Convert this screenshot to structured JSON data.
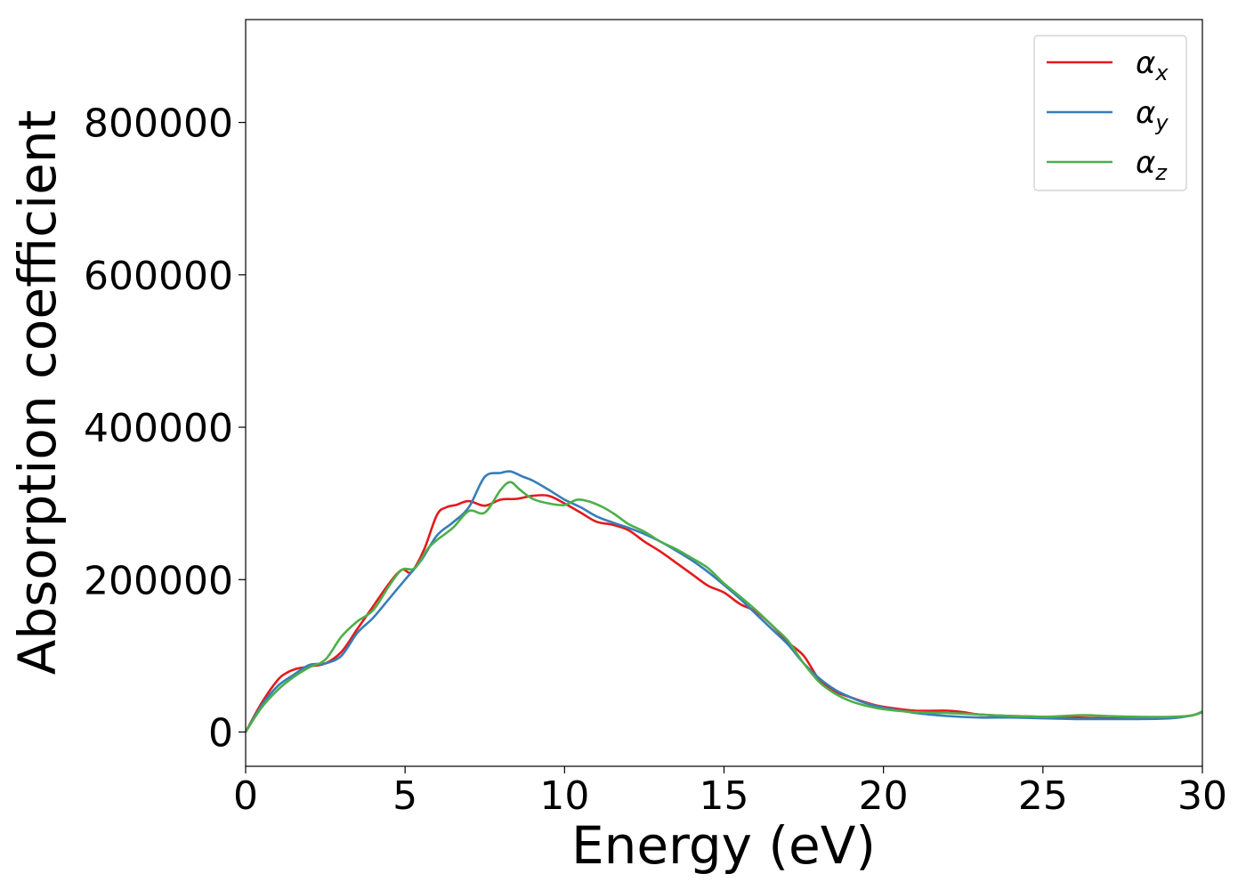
{
  "chart_data": {
    "type": "line",
    "xlabel": "Energy (eV)",
    "ylabel": "Absorption coefficient",
    "xlim": [
      0,
      30
    ],
    "ylim": [
      -45000,
      935000
    ],
    "xticks": [
      0,
      5,
      10,
      15,
      20,
      25,
      30
    ],
    "xtick_labels": [
      "0",
      "5",
      "10",
      "15",
      "20",
      "25",
      "30"
    ],
    "yticks": [
      0,
      200000,
      400000,
      600000,
      800000
    ],
    "ytick_labels": [
      "0",
      "200000",
      "400000",
      "600000",
      "800000"
    ],
    "grid": false,
    "legend_position": "top-right",
    "series": [
      {
        "name": "α",
        "subscript": "x",
        "color": "#e41a1c",
        "x": [
          0,
          0.5,
          1.0,
          1.3,
          1.6,
          2.0,
          2.5,
          3.0,
          3.5,
          4.0,
          4.5,
          4.9,
          5.2,
          5.6,
          6.0,
          6.3,
          6.6,
          7.0,
          7.5,
          8.0,
          8.5,
          9.0,
          9.5,
          10.0,
          10.5,
          11.0,
          11.5,
          12.0,
          12.5,
          13.0,
          13.5,
          14.0,
          14.5,
          15.0,
          15.5,
          16.0,
          16.5,
          17.0,
          17.5,
          18.0,
          18.5,
          19.0,
          19.5,
          20.0,
          21.0,
          22.0,
          22.5,
          23.0,
          24.0,
          25.0,
          26.0,
          27.0,
          28.0,
          29.0,
          29.7,
          30.0
        ],
        "values": [
          0,
          38000,
          68000,
          78000,
          83000,
          86000,
          90000,
          105000,
          135000,
          165000,
          195000,
          213000,
          210000,
          240000,
          285000,
          295000,
          298000,
          303000,
          297000,
          305000,
          306000,
          310000,
          310000,
          300000,
          288000,
          276000,
          272000,
          265000,
          250000,
          237000,
          222000,
          207000,
          192000,
          183000,
          168000,
          158000,
          140000,
          118000,
          100000,
          68000,
          53000,
          45000,
          38000,
          33000,
          28000,
          28000,
          26000,
          23000,
          21000,
          20000,
          19000,
          18000,
          18000,
          19000,
          22000,
          27000
        ]
      },
      {
        "name": "α",
        "subscript": "y",
        "color": "#377eb8",
        "x": [
          0,
          0.5,
          1.0,
          1.5,
          2.0,
          2.5,
          3.0,
          3.5,
          4.0,
          4.5,
          5.0,
          5.5,
          6.0,
          6.5,
          7.0,
          7.5,
          8.0,
          8.3,
          8.7,
          9.0,
          9.5,
          10.0,
          10.5,
          11.0,
          11.5,
          12.0,
          12.5,
          13.0,
          13.5,
          14.0,
          14.5,
          15.0,
          15.5,
          16.0,
          16.5,
          17.0,
          17.5,
          18.0,
          18.5,
          19.0,
          19.5,
          20.0,
          21.0,
          22.0,
          23.0,
          24.0,
          25.0,
          26.0,
          27.0,
          28.0,
          29.0,
          29.7,
          30.0
        ],
        "values": [
          0,
          35000,
          60000,
          75000,
          88000,
          90000,
          100000,
          130000,
          150000,
          175000,
          200000,
          225000,
          258000,
          275000,
          295000,
          335000,
          340000,
          342000,
          335000,
          330000,
          318000,
          305000,
          295000,
          283000,
          275000,
          268000,
          260000,
          250000,
          238000,
          225000,
          210000,
          193000,
          175000,
          155000,
          135000,
          115000,
          90000,
          70000,
          55000,
          45000,
          37000,
          32000,
          25000,
          21000,
          19000,
          19000,
          18000,
          17000,
          17000,
          17000,
          18000,
          22000,
          26000
        ]
      },
      {
        "name": "α",
        "subscript": "z",
        "color": "#4daf4a",
        "x": [
          0,
          0.5,
          1.0,
          1.5,
          2.0,
          2.5,
          3.0,
          3.5,
          4.0,
          4.5,
          4.9,
          5.3,
          5.7,
          6.0,
          6.5,
          7.0,
          7.5,
          8.0,
          8.3,
          8.6,
          9.0,
          9.5,
          10.0,
          10.4,
          10.8,
          11.2,
          11.6,
          12.0,
          12.5,
          13.0,
          13.5,
          14.0,
          14.5,
          15.0,
          15.5,
          16.0,
          16.5,
          17.0,
          17.5,
          18.0,
          18.5,
          19.0,
          19.5,
          20.0,
          21.0,
          22.0,
          23.0,
          24.0,
          25.0,
          25.6,
          26.3,
          27.0,
          28.0,
          29.0,
          29.7,
          30.0
        ],
        "values": [
          0,
          32000,
          55000,
          72000,
          85000,
          95000,
          125000,
          145000,
          160000,
          192000,
          213000,
          215000,
          240000,
          252000,
          268000,
          290000,
          288000,
          318000,
          328000,
          318000,
          306000,
          300000,
          298000,
          305000,
          302000,
          295000,
          285000,
          273000,
          263000,
          250000,
          240000,
          228000,
          215000,
          195000,
          178000,
          160000,
          140000,
          120000,
          90000,
          65000,
          50000,
          40000,
          34000,
          30000,
          26000,
          25000,
          23000,
          21000,
          20000,
          21000,
          22000,
          21000,
          20000,
          20000,
          22000,
          27000
        ]
      }
    ]
  }
}
